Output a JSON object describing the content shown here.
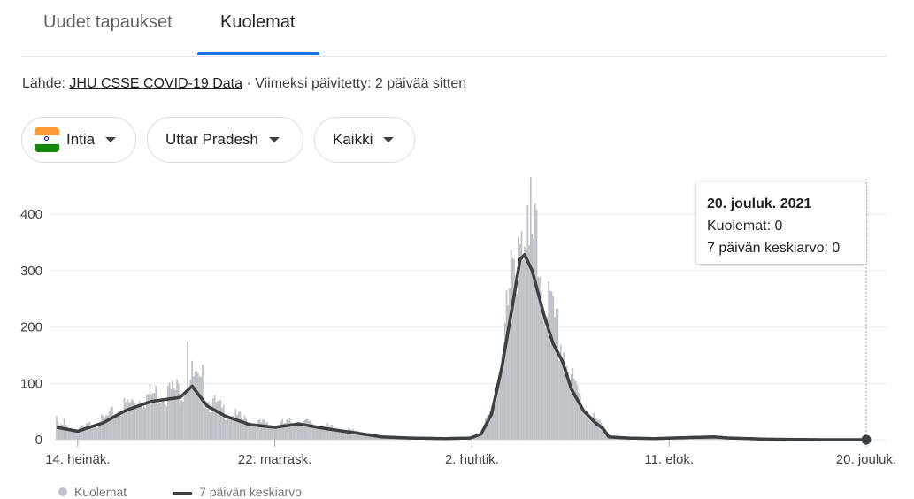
{
  "tabs": [
    {
      "label": "Uudet tapaukset",
      "active": false
    },
    {
      "label": "Kuolemat",
      "active": true
    }
  ],
  "source": {
    "prefix": "Lähde:",
    "link": "JHU CSSE COVID-19 Data",
    "updated": "· Viimeksi päivitetty: 2 päivää sitten"
  },
  "filters": {
    "country": "Intia",
    "region": "Uttar Pradesh",
    "range": "Kaikki"
  },
  "tooltip": {
    "date": "20. jouluk. 2021",
    "deaths": "Kuolemat: 0",
    "average": "7 päivän keskiarvo: 0"
  },
  "legend": {
    "deaths": "Kuolemat",
    "average": "7 päivän keskiarvo"
  },
  "colors": {
    "bars": "#bdc1c6",
    "line": "#3c4043",
    "accent": "#1a73e8",
    "grid": "#e8eaed"
  },
  "chart_data": {
    "type": "bar",
    "title": "",
    "xlabel": "",
    "ylabel": "",
    "ylim": [
      0,
      400
    ],
    "yticks": [
      0,
      100,
      200,
      300,
      400
    ],
    "xticks": [
      "14. heinäk.",
      "22. marrask.",
      "2. huhtik.",
      "11. elok.",
      "20. jouluk."
    ],
    "start_date": "2020-06-30",
    "end_date": "2021-12-20",
    "grid": true,
    "legend_position": "bottom",
    "series": [
      {
        "name": "Kuolemat",
        "kind": "bars",
        "description": "daily deaths"
      },
      {
        "name": "7 päivän keskiarvo",
        "kind": "line",
        "description": "7-day average"
      }
    ],
    "avg_keypoints": [
      [
        "2020-06-30",
        22
      ],
      [
        "2020-07-14",
        15
      ],
      [
        "2020-07-31",
        30
      ],
      [
        "2020-08-15",
        52
      ],
      [
        "2020-09-01",
        68
      ],
      [
        "2020-09-20",
        75
      ],
      [
        "2020-09-28",
        95
      ],
      [
        "2020-10-08",
        60
      ],
      [
        "2020-10-20",
        42
      ],
      [
        "2020-11-05",
        27
      ],
      [
        "2020-11-22",
        22
      ],
      [
        "2020-12-08",
        28
      ],
      [
        "2020-12-25",
        20
      ],
      [
        "2021-01-15",
        12
      ],
      [
        "2021-02-01",
        5
      ],
      [
        "2021-02-20",
        3
      ],
      [
        "2021-03-15",
        2
      ],
      [
        "2021-04-01",
        3
      ],
      [
        "2021-04-08",
        10
      ],
      [
        "2021-04-15",
        45
      ],
      [
        "2021-04-22",
        130
      ],
      [
        "2021-04-30",
        255
      ],
      [
        "2021-05-04",
        320
      ],
      [
        "2021-05-07",
        328
      ],
      [
        "2021-05-12",
        300
      ],
      [
        "2021-05-20",
        220
      ],
      [
        "2021-05-26",
        170
      ],
      [
        "2021-06-01",
        140
      ],
      [
        "2021-06-07",
        90
      ],
      [
        "2021-06-15",
        52
      ],
      [
        "2021-06-23",
        30
      ],
      [
        "2021-06-28",
        20
      ],
      [
        "2021-07-02",
        5
      ],
      [
        "2021-07-15",
        3
      ],
      [
        "2021-08-01",
        2
      ],
      [
        "2021-08-25",
        4
      ],
      [
        "2021-09-10",
        5
      ],
      [
        "2021-09-20",
        3
      ],
      [
        "2021-10-15",
        1
      ],
      [
        "2021-11-20",
        0
      ],
      [
        "2021-12-20",
        0
      ]
    ],
    "bar_spikes": [
      [
        "2020-06-30",
        42
      ],
      [
        "2020-07-05",
        38
      ],
      [
        "2020-09-12",
        95
      ],
      [
        "2020-09-25",
        175
      ],
      [
        "2020-10-05",
        133
      ],
      [
        "2021-04-30",
        320
      ],
      [
        "2021-05-03",
        360
      ],
      [
        "2021-05-05",
        370
      ],
      [
        "2021-05-08",
        340
      ],
      [
        "2021-05-10",
        345
      ]
    ]
  }
}
